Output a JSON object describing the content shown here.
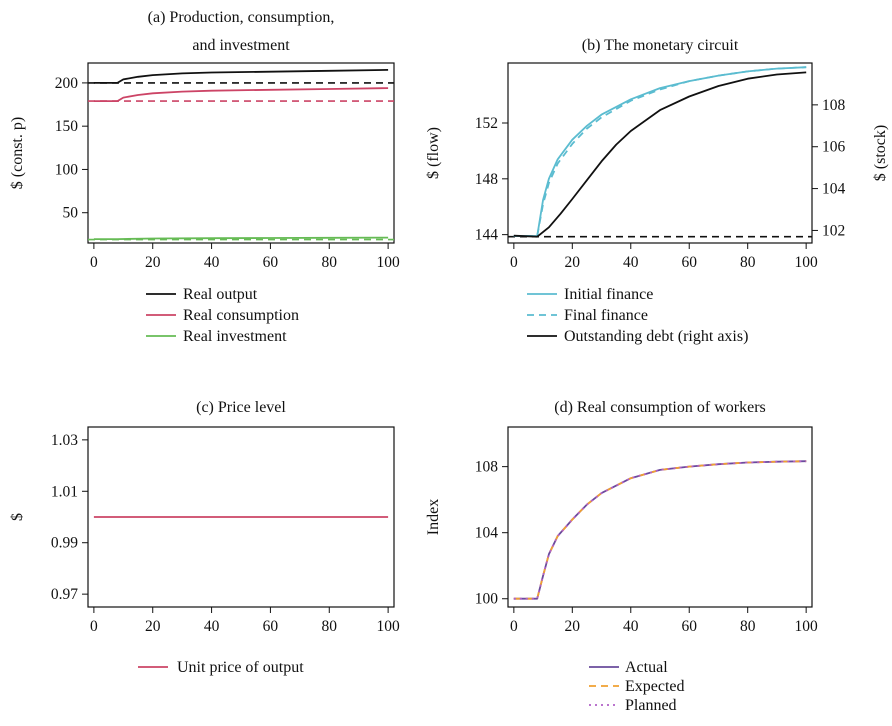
{
  "colors": {
    "black": "#111111",
    "crimson": "#cc4466",
    "green": "#66bb55",
    "cyan": "#5bbcd0",
    "purple": "#6a4b9c",
    "orange": "#f0a030",
    "violet": "#b060c8"
  },
  "chart_data": [
    {
      "id": "a",
      "type": "line",
      "title_lines": [
        "(a) Production, consumption,",
        "and investment"
      ],
      "xlabel": "",
      "ylabel": "$ (const. p)",
      "xlim": [
        -2,
        102
      ],
      "ylim": [
        15,
        223
      ],
      "xticks": [
        0,
        20,
        40,
        60,
        80,
        100
      ],
      "yticks": [
        50,
        100,
        150,
        200
      ],
      "legend_position": "below",
      "series": [
        {
          "name": "Real output",
          "color": "#111111",
          "dash": "solid",
          "x": [
            0,
            8,
            10,
            15,
            20,
            30,
            40,
            60,
            80,
            100
          ],
          "y": [
            200,
            200,
            204,
            207,
            209,
            211,
            212,
            213,
            214,
            215
          ]
        },
        {
          "name": "Real consumption",
          "color": "#cc4466",
          "dash": "solid",
          "x": [
            0,
            8,
            10,
            15,
            20,
            30,
            40,
            60,
            80,
            100
          ],
          "y": [
            179,
            179,
            183,
            186,
            188,
            190,
            191,
            192,
            193,
            194
          ]
        },
        {
          "name": "Real investment",
          "color": "#66bb55",
          "dash": "solid",
          "x": [
            0,
            8,
            20,
            40,
            60,
            80,
            100
          ],
          "y": [
            19.5,
            19.5,
            20.2,
            20.6,
            20.8,
            21,
            21.2
          ]
        }
      ],
      "references": [
        {
          "y": 200,
          "color": "#111111",
          "dash": "dashed"
        },
        {
          "y": 179,
          "color": "#cc4466",
          "dash": "dashed"
        },
        {
          "y": 19,
          "color": "#66bb55",
          "dash": "dashed"
        }
      ]
    },
    {
      "id": "b",
      "type": "line",
      "title_lines": [
        "(b) The monetary circuit"
      ],
      "xlabel": "",
      "ylabel": "$ (flow)",
      "ylabel_right": "$ (stock)",
      "xlim": [
        -2,
        102
      ],
      "ylim": [
        143.4,
        156.3
      ],
      "ylim_right": [
        101.4,
        110
      ],
      "xticks": [
        0,
        20,
        40,
        60,
        80,
        100
      ],
      "yticks": [
        144,
        148,
        152
      ],
      "yticks_right": [
        102,
        104,
        106,
        108
      ],
      "legend_position": "below",
      "series": [
        {
          "name": "Initial finance",
          "color": "#5bbcd0",
          "dash": "solid",
          "axis": "left",
          "x": [
            0,
            8,
            10,
            12,
            15,
            20,
            25,
            30,
            40,
            50,
            60,
            70,
            80,
            90,
            100
          ],
          "y": [
            143.9,
            143.9,
            146.5,
            148.0,
            149.4,
            150.8,
            151.8,
            152.6,
            153.7,
            154.5,
            155.0,
            155.4,
            155.7,
            155.9,
            156.0
          ]
        },
        {
          "name": "Final finance",
          "color": "#5bbcd0",
          "dash": "dashed",
          "axis": "left",
          "x": [
            0,
            8,
            10,
            12,
            15,
            20,
            25,
            30,
            40,
            50,
            60,
            70,
            80,
            90,
            100
          ],
          "y": [
            143.9,
            143.9,
            146.2,
            147.7,
            149.1,
            150.5,
            151.6,
            152.4,
            153.6,
            154.4,
            155.0,
            155.4,
            155.7,
            155.9,
            156.0
          ]
        },
        {
          "name": "Outstanding debt (right axis)",
          "color": "#111111",
          "dash": "solid",
          "axis": "right",
          "x": [
            0,
            8,
            12,
            16,
            20,
            25,
            30,
            35,
            40,
            50,
            60,
            70,
            80,
            90,
            100
          ],
          "y": [
            101.75,
            101.7,
            102.15,
            102.8,
            103.5,
            104.4,
            105.3,
            106.1,
            106.75,
            107.75,
            108.4,
            108.9,
            109.25,
            109.45,
            109.55
          ]
        }
      ],
      "references": [
        {
          "y": 143.85,
          "color": "#111111",
          "dash": "dashed",
          "axis": "left"
        }
      ]
    },
    {
      "id": "c",
      "type": "line",
      "title_lines": [
        "(c) Price level"
      ],
      "xlabel": "",
      "ylabel": "$",
      "xlim": [
        -2,
        102
      ],
      "ylim": [
        0.965,
        1.035
      ],
      "xticks": [
        0,
        20,
        40,
        60,
        80,
        100
      ],
      "yticks": [
        0.97,
        0.99,
        1.01,
        1.03
      ],
      "ytick_labels": [
        "0.97",
        "0.99",
        "1.01",
        "1.03"
      ],
      "legend_position": "below",
      "series": [
        {
          "name": "Unit price of output",
          "color": "#cc4466",
          "dash": "solid",
          "x": [
            0,
            100
          ],
          "y": [
            1.0,
            1.0
          ]
        }
      ]
    },
    {
      "id": "d",
      "type": "line",
      "title_lines": [
        "(d) Real consumption of workers"
      ],
      "xlabel": "",
      "ylabel": "Index",
      "xlim": [
        -2,
        102
      ],
      "ylim": [
        99.5,
        110.4
      ],
      "xticks": [
        0,
        20,
        40,
        60,
        80,
        100
      ],
      "yticks": [
        100,
        104,
        108
      ],
      "legend_position": "below",
      "series": [
        {
          "name": "Actual",
          "color": "#6a4b9c",
          "dash": "solid",
          "x": [
            0,
            8,
            10,
            12,
            15,
            18,
            20,
            25,
            30,
            40,
            50,
            60,
            70,
            80,
            90,
            100
          ],
          "y": [
            100,
            100,
            101.4,
            102.7,
            103.8,
            104.4,
            104.8,
            105.7,
            106.4,
            107.3,
            107.8,
            108.0,
            108.15,
            108.25,
            108.3,
            108.33
          ]
        },
        {
          "name": "Expected",
          "color": "#f0a030",
          "dash": "dashed",
          "x": [
            0,
            8,
            10,
            12,
            15,
            18,
            20,
            25,
            30,
            40,
            50,
            60,
            70,
            80,
            90,
            100
          ],
          "y": [
            100,
            100,
            101.4,
            102.7,
            103.8,
            104.4,
            104.8,
            105.7,
            106.4,
            107.3,
            107.8,
            108.0,
            108.15,
            108.25,
            108.3,
            108.33
          ]
        },
        {
          "name": "Planned",
          "color": "#b060c8",
          "dash": "dotted",
          "x": [
            0,
            8,
            10,
            12,
            15,
            18,
            20,
            25,
            30,
            40,
            50,
            60,
            70,
            80,
            90,
            100
          ],
          "y": [
            100,
            100,
            101.4,
            102.7,
            103.8,
            104.4,
            104.8,
            105.7,
            106.4,
            107.3,
            107.8,
            108.0,
            108.15,
            108.25,
            108.3,
            108.33
          ]
        }
      ]
    }
  ]
}
